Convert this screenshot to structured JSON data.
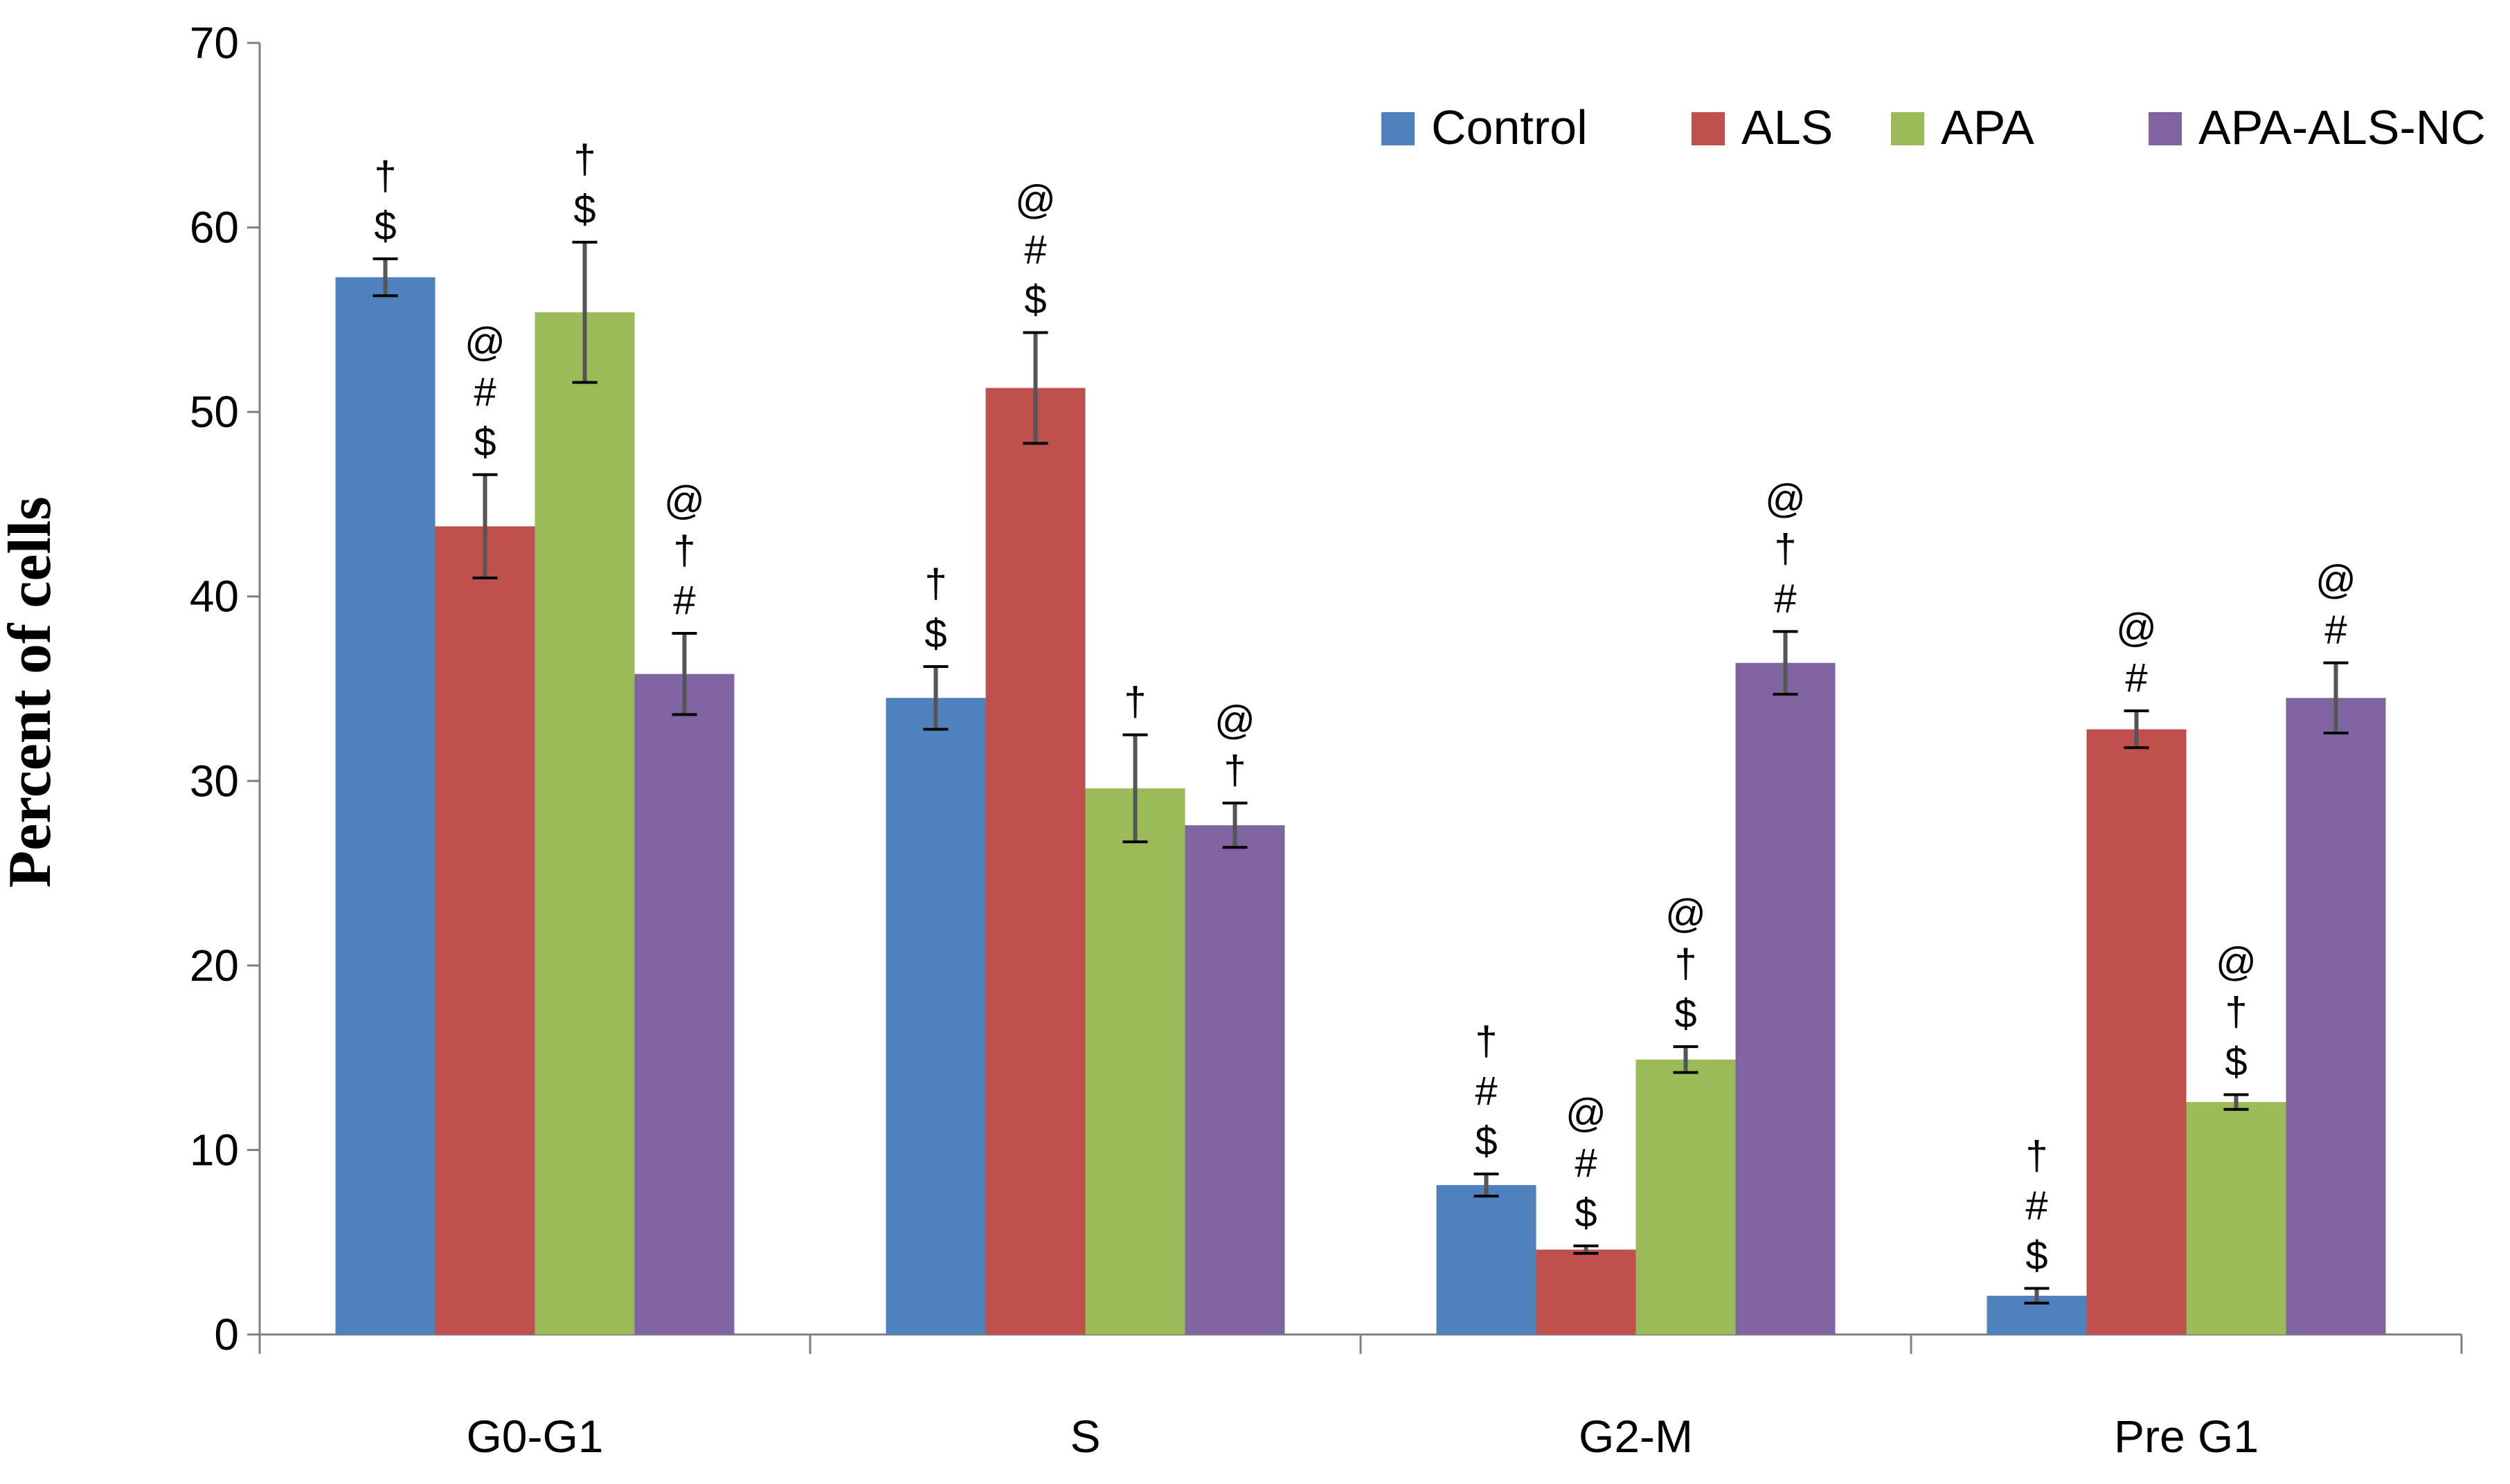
{
  "chart_data": {
    "type": "bar",
    "title": "",
    "xlabel": "",
    "ylabel": "Percent of cells",
    "ylim": [
      0,
      70
    ],
    "yticks": [
      0,
      10,
      20,
      30,
      40,
      50,
      60,
      70
    ],
    "categories": [
      "G0-G1",
      "S",
      "G2-M",
      "Pre G1"
    ],
    "series": [
      {
        "name": "Control",
        "color": "#4f81bd",
        "values": [
          57.3,
          34.5,
          8.1,
          2.1
        ],
        "errors": [
          1.0,
          1.7,
          0.6,
          0.4
        ],
        "annotations": [
          [
            "†",
            "$"
          ],
          [
            "†",
            "$"
          ],
          [
            "†",
            "#",
            "$"
          ],
          [
            "†",
            "#",
            "$"
          ]
        ]
      },
      {
        "name": "ALS",
        "color": "#c0504d",
        "values": [
          43.8,
          51.3,
          4.6,
          32.8
        ],
        "errors": [
          2.8,
          3.0,
          0.2,
          1.0
        ],
        "annotations": [
          [
            "@",
            "#",
            "$"
          ],
          [
            "@",
            "#",
            "$"
          ],
          [
            "@",
            "#",
            "$"
          ],
          [
            "@",
            "#"
          ]
        ]
      },
      {
        "name": "APA",
        "color": "#9bbb59",
        "values": [
          55.4,
          29.6,
          14.9,
          12.6
        ],
        "errors": [
          3.8,
          2.9,
          0.7,
          0.4
        ],
        "annotations": [
          [
            "†",
            "$"
          ],
          [
            "†"
          ],
          [
            "@",
            "†",
            "$"
          ],
          [
            "@",
            "†",
            "$"
          ]
        ]
      },
      {
        "name": "APA-ALS-NC",
        "color": "#8064a2",
        "values": [
          35.8,
          27.6,
          36.4,
          34.5
        ],
        "errors": [
          2.2,
          1.2,
          1.7,
          1.9
        ],
        "annotations": [
          [
            "@",
            "†",
            "#"
          ],
          [
            "@",
            "†"
          ],
          [
            "@",
            "†",
            "#"
          ],
          [
            "@",
            "#"
          ]
        ]
      }
    ],
    "legend_position": "top-right",
    "grid": false
  }
}
